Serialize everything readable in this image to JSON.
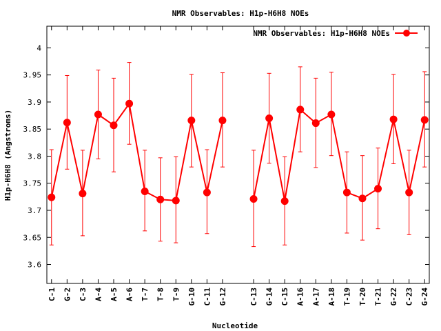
{
  "chart_data": {
    "type": "line",
    "title": "NMR Observables: H1p-H6H8 NOEs",
    "xlabel": "Nucleotide",
    "ylabel": "H1p-H6H8 (Angstroms)",
    "ylim": [
      3.565,
      4.04
    ],
    "yticks": [
      3.6,
      3.65,
      3.7,
      3.75,
      3.8,
      3.85,
      3.9,
      3.95,
      4
    ],
    "ytick_labels": [
      "3.6",
      "3.65",
      "3.7",
      "3.75",
      "3.8",
      "3.85",
      "3.9",
      "3.95",
      "4"
    ],
    "legend_position": "top-right",
    "grid": false,
    "color": "#ff0000",
    "series": [
      {
        "name": "NMR Observables: H1p-H6H8 NOEs",
        "segments": [
          [
            {
              "x": 1,
              "label": "C-1",
              "y": 3.724,
              "err_low": 3.636,
              "err_high": 3.812
            },
            {
              "x": 2,
              "label": "G-2",
              "y": 3.862,
              "err_low": 3.776,
              "err_high": 3.949
            },
            {
              "x": 3,
              "label": "C-3",
              "y": 3.731,
              "err_low": 3.653,
              "err_high": 3.811
            },
            {
              "x": 4,
              "label": "A-4",
              "y": 3.877,
              "err_low": 3.795,
              "err_high": 3.959
            },
            {
              "x": 5,
              "label": "A-5",
              "y": 3.857,
              "err_low": 3.771,
              "err_high": 3.944
            },
            {
              "x": 6,
              "label": "A-6",
              "y": 3.897,
              "err_low": 3.822,
              "err_high": 3.973
            },
            {
              "x": 7,
              "label": "T-7",
              "y": 3.735,
              "err_low": 3.662,
              "err_high": 3.811
            },
            {
              "x": 8,
              "label": "T-8",
              "y": 3.72,
              "err_low": 3.643,
              "err_high": 3.797
            },
            {
              "x": 9,
              "label": "T-9",
              "y": 3.718,
              "err_low": 3.64,
              "err_high": 3.799
            },
            {
              "x": 10,
              "label": "G-10",
              "y": 3.866,
              "err_low": 3.78,
              "err_high": 3.951
            },
            {
              "x": 11,
              "label": "C-11",
              "y": 3.733,
              "err_low": 3.657,
              "err_high": 3.812
            },
            {
              "x": 12,
              "label": "G-12",
              "y": 3.866,
              "err_low": 3.78,
              "err_high": 3.954
            }
          ],
          [
            {
              "x": 14,
              "label": "C-13",
              "y": 3.721,
              "err_low": 3.633,
              "err_high": 3.811
            },
            {
              "x": 15,
              "label": "G-14",
              "y": 3.87,
              "err_low": 3.787,
              "err_high": 3.953
            },
            {
              "x": 16,
              "label": "C-15",
              "y": 3.717,
              "err_low": 3.636,
              "err_high": 3.799
            },
            {
              "x": 17,
              "label": "A-16",
              "y": 3.886,
              "err_low": 3.808,
              "err_high": 3.965
            },
            {
              "x": 18,
              "label": "A-17",
              "y": 3.861,
              "err_low": 3.779,
              "err_high": 3.944
            },
            {
              "x": 19,
              "label": "A-18",
              "y": 3.877,
              "err_low": 3.801,
              "err_high": 3.955
            },
            {
              "x": 20,
              "label": "T-19",
              "y": 3.733,
              "err_low": 3.658,
              "err_high": 3.808
            },
            {
              "x": 21,
              "label": "T-20",
              "y": 3.722,
              "err_low": 3.645,
              "err_high": 3.801
            },
            {
              "x": 22,
              "label": "T-21",
              "y": 3.74,
              "err_low": 3.666,
              "err_high": 3.815
            },
            {
              "x": 23,
              "label": "G-22",
              "y": 3.868,
              "err_low": 3.786,
              "err_high": 3.951
            },
            {
              "x": 24,
              "label": "C-23",
              "y": 3.733,
              "err_low": 3.655,
              "err_high": 3.811
            },
            {
              "x": 25,
              "label": "G-24",
              "y": 3.867,
              "err_low": 3.78,
              "err_high": 3.956
            }
          ]
        ]
      }
    ]
  }
}
